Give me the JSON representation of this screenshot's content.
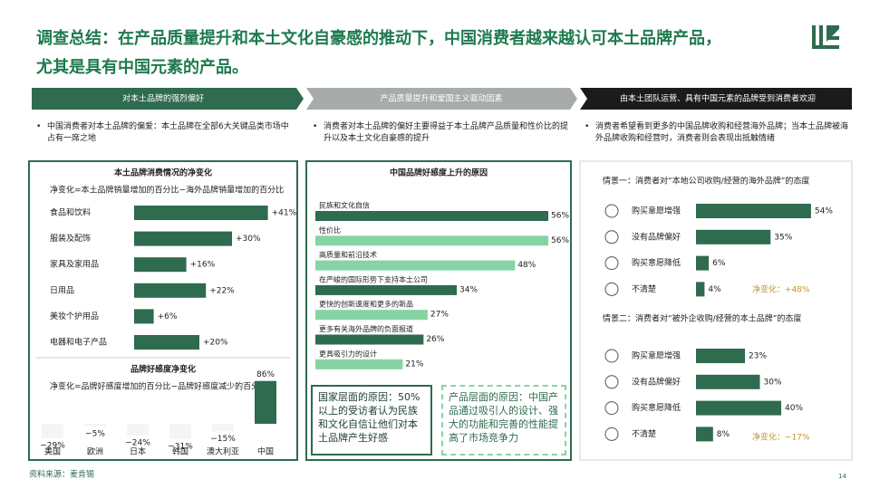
{
  "header": {
    "title_lines": [
      "调查总结：在产品质量提升和本土文化自豪感的推动下，中国消费者越来越认可本土品牌产品，",
      "尤其是具有中国元素的产品。"
    ]
  },
  "banners": [
    "对本土品牌的强烈偏好",
    "产品质量提升和爱国主义驱动因素",
    "由本土团队运营、具有中国元素的品牌受到消费者欢迎"
  ],
  "bullets": [
    "中国消费者对本土品牌的偏爱：本土品牌在全部6大关键品类市场中占有一席之地",
    "消费者对本土品牌的偏好主要得益于本土品牌产品质量和性价比的提升以及本土文化自豪感的提升",
    "消费者希望看到更多的中国品牌收购和经营海外品牌；当本土品牌被海外品牌收购和经营时，消费者则会表现出抵触情绪"
  ],
  "panel_1": {
    "chart_1": {
      "title": "本土品牌消费情况的净变化",
      "subtitle": "净变化=本土品牌销量增加的百分比−海外品牌销量增加的百分比",
      "categories": [
        "食品和饮料",
        "服装及配饰",
        "家具及家用品",
        "日用品",
        "美妆个护用品",
        "电器和电子产品"
      ],
      "values": [
        41,
        30,
        16,
        22,
        6,
        20
      ],
      "value_labels": [
        "+41%",
        "+30%",
        "+16%",
        "+22%",
        "+6%",
        "+20%"
      ],
      "color": "#2e6b4f"
    },
    "chart_2": {
      "title": "品牌好感度净变化",
      "subtitle": "净变化=品牌好感度增加的百分比−品牌好感度减少的百分比",
      "categories": [
        "美国",
        "欧洲",
        "日本",
        "韩国",
        "澳大利亚",
        "中国"
      ],
      "values": [
        -29,
        -5,
        -24,
        -31,
        -15,
        86
      ],
      "value_labels": [
        "−29%",
        "−5%",
        "−24%",
        "−31%",
        "−15%",
        "86%"
      ],
      "color": "#2e6b4f"
    }
  },
  "panel_2": {
    "chart": {
      "title": "中国品牌好感度上升的原因",
      "categories": [
        "民族和文化自信",
        "性价比",
        "高质量和前沿技术",
        "在严峻的国际形势下支持本土公司",
        "更快的创新速度和更多的新品",
        "更多有关海外品牌的负面报道",
        "更具吸引力的设计"
      ],
      "values": [
        56,
        56,
        48,
        34,
        27,
        26,
        21
      ],
      "value_labels": [
        "56%",
        "56%",
        "48%",
        "34%",
        "27%",
        "26%",
        "21%"
      ],
      "colors": [
        "#2e6b4f",
        "#86d4a4",
        "#86d4a4",
        "#2e6b4f",
        "#86d4a4",
        "#2e6b4f",
        "#86d4a4"
      ]
    },
    "notes": [
      "国家层面的原因：50%以上的受访者认为民族和文化自信让他们对本土品牌产生好感",
      "产品层面的原因：中国产品通过吸引人的设计、强大的功能和完善的性能提高了市场竞争力"
    ]
  },
  "panel_3": {
    "color": "#2e6b4f",
    "scenarios": [
      {
        "heading": "情景一：消费者对“本地公司收购/经营的海外品牌”的态度",
        "categories": [
          "购买意愿增强",
          "没有品牌偏好",
          "购买意愿降低",
          "不清楚"
        ],
        "values": [
          54,
          35,
          6,
          4
        ],
        "value_labels": [
          "54%",
          "35%",
          "6%",
          "4%"
        ],
        "net_change": "净变化：+48%"
      },
      {
        "heading": "情景二：消费者对“被外企收购/经营的本土品牌”的态度",
        "categories": [
          "购买意愿增强",
          "没有品牌偏好",
          "购买意愿降低",
          "不清楚"
        ],
        "values": [
          23,
          30,
          40,
          8
        ],
        "value_labels": [
          "23%",
          "30%",
          "40%",
          "8%"
        ],
        "net_change": "净变化：−17%"
      }
    ]
  },
  "footer": {
    "source": "资料来源：麦肯锡",
    "page": "14"
  }
}
